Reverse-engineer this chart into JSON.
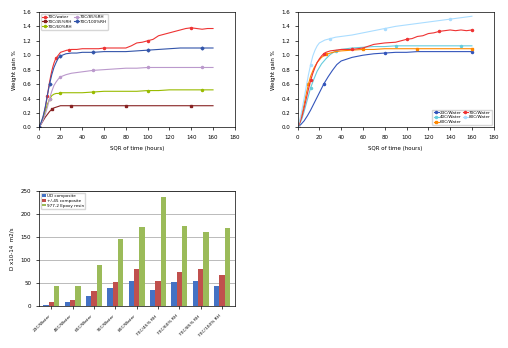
{
  "left_plot": {
    "xlabel": "SQR of time (hours)",
    "ylabel": "Weight gain %",
    "xlim": [
      0,
      180
    ],
    "ylim": [
      0,
      1.6
    ],
    "yticks": [
      0,
      0.2,
      0.4,
      0.6,
      0.8,
      1.0,
      1.2,
      1.4,
      1.6
    ],
    "xticks": [
      0,
      20,
      40,
      60,
      80,
      100,
      120,
      140,
      160,
      180
    ],
    "series": [
      {
        "label": "70C/water",
        "color": "#EE3333",
        "marker": "o",
        "markersize": 1.5,
        "linewidth": 0.8,
        "markevery": 8,
        "x": [
          0,
          1,
          2,
          3,
          4,
          5,
          6,
          7,
          8,
          9,
          10,
          11,
          12,
          13,
          14,
          15,
          16,
          17,
          18,
          19,
          20,
          22,
          24,
          26,
          28,
          30,
          32,
          35,
          40,
          45,
          50,
          55,
          60,
          65,
          70,
          75,
          80,
          85,
          90,
          95,
          100,
          105,
          110,
          115,
          120,
          125,
          130,
          135,
          140,
          145,
          150,
          155,
          160
        ],
        "y": [
          0,
          0.02,
          0.05,
          0.09,
          0.14,
          0.2,
          0.27,
          0.35,
          0.44,
          0.54,
          0.63,
          0.71,
          0.78,
          0.84,
          0.89,
          0.93,
          0.96,
          0.98,
          1.0,
          1.02,
          1.04,
          1.05,
          1.06,
          1.07,
          1.07,
          1.08,
          1.08,
          1.08,
          1.09,
          1.09,
          1.09,
          1.09,
          1.1,
          1.1,
          1.1,
          1.1,
          1.1,
          1.13,
          1.17,
          1.18,
          1.2,
          1.22,
          1.27,
          1.29,
          1.31,
          1.33,
          1.35,
          1.37,
          1.38,
          1.37,
          1.36,
          1.37,
          1.37
        ]
      },
      {
        "label": "70C/45%RH",
        "color": "#882222",
        "marker": "s",
        "markersize": 1.5,
        "linewidth": 0.8,
        "markevery": 6,
        "x": [
          0,
          2,
          4,
          6,
          8,
          10,
          12,
          14,
          16,
          18,
          20,
          25,
          30,
          35,
          40,
          50,
          60,
          70,
          80,
          90,
          100,
          110,
          120,
          130,
          140,
          150,
          160
        ],
        "y": [
          0,
          0.04,
          0.09,
          0.14,
          0.18,
          0.22,
          0.25,
          0.27,
          0.28,
          0.29,
          0.3,
          0.3,
          0.3,
          0.3,
          0.3,
          0.3,
          0.3,
          0.3,
          0.3,
          0.3,
          0.3,
          0.3,
          0.3,
          0.3,
          0.3,
          0.3,
          0.3
        ]
      },
      {
        "label": "70C/60%RH",
        "color": "#99BB00",
        "marker": "o",
        "markersize": 1.5,
        "linewidth": 0.8,
        "markevery": 5,
        "x": [
          0,
          2,
          4,
          6,
          8,
          10,
          12,
          14,
          16,
          18,
          20,
          25,
          30,
          35,
          40,
          50,
          60,
          70,
          80,
          90,
          100,
          110,
          120,
          130,
          140,
          150,
          160
        ],
        "y": [
          0,
          0.05,
          0.12,
          0.22,
          0.32,
          0.39,
          0.44,
          0.46,
          0.47,
          0.47,
          0.48,
          0.48,
          0.48,
          0.48,
          0.48,
          0.49,
          0.5,
          0.5,
          0.5,
          0.5,
          0.51,
          0.51,
          0.52,
          0.52,
          0.52,
          0.52,
          0.52
        ]
      },
      {
        "label": "70C/85%RH",
        "color": "#BB99CC",
        "marker": "o",
        "markersize": 1.5,
        "linewidth": 0.8,
        "markevery": 5,
        "x": [
          0,
          2,
          4,
          6,
          8,
          10,
          12,
          14,
          16,
          18,
          20,
          25,
          30,
          35,
          40,
          50,
          60,
          70,
          80,
          90,
          100,
          110,
          120,
          130,
          140,
          150,
          160
        ],
        "y": [
          0,
          0.04,
          0.1,
          0.18,
          0.28,
          0.4,
          0.5,
          0.58,
          0.63,
          0.67,
          0.7,
          0.73,
          0.75,
          0.76,
          0.77,
          0.79,
          0.8,
          0.81,
          0.82,
          0.82,
          0.83,
          0.83,
          0.83,
          0.83,
          0.83,
          0.83,
          0.83
        ]
      },
      {
        "label": "70C/100%RH",
        "color": "#3355AA",
        "marker": "D",
        "markersize": 1.5,
        "linewidth": 0.8,
        "markevery": 5,
        "x": [
          0,
          2,
          4,
          6,
          8,
          10,
          12,
          14,
          16,
          18,
          20,
          25,
          30,
          35,
          40,
          50,
          60,
          70,
          80,
          90,
          100,
          110,
          120,
          130,
          140,
          150,
          160
        ],
        "y": [
          0,
          0.06,
          0.15,
          0.28,
          0.45,
          0.6,
          0.73,
          0.83,
          0.9,
          0.96,
          0.99,
          1.02,
          1.03,
          1.03,
          1.04,
          1.04,
          1.05,
          1.05,
          1.05,
          1.06,
          1.07,
          1.08,
          1.09,
          1.1,
          1.1,
          1.1,
          1.1
        ]
      }
    ]
  },
  "right_plot": {
    "xlabel": "SQR of time (hours)",
    "ylabel": "Weight gain %",
    "xlim": [
      0,
      180
    ],
    "ylim": [
      0,
      1.6
    ],
    "yticks": [
      0,
      0.2,
      0.4,
      0.6,
      0.8,
      1.0,
      1.2,
      1.4,
      1.6
    ],
    "xticks": [
      0,
      20,
      40,
      60,
      80,
      100,
      120,
      140,
      160,
      180
    ],
    "legend_loc": "lower right",
    "series": [
      {
        "label": "23C/Water",
        "color": "#3355BB",
        "marker": "o",
        "markersize": 1.5,
        "linewidth": 0.8,
        "markevery": 8,
        "x": [
          0,
          3,
          6,
          9,
          12,
          15,
          18,
          21,
          24,
          28,
          32,
          36,
          40,
          50,
          60,
          70,
          80,
          90,
          100,
          110,
          120,
          130,
          140,
          150,
          160
        ],
        "y": [
          0,
          0.04,
          0.09,
          0.16,
          0.24,
          0.33,
          0.42,
          0.51,
          0.6,
          0.7,
          0.79,
          0.87,
          0.92,
          0.97,
          1.0,
          1.02,
          1.03,
          1.04,
          1.04,
          1.05,
          1.05,
          1.05,
          1.05,
          1.05,
          1.05
        ]
      },
      {
        "label": "40C/Water",
        "color": "#66CCDD",
        "marker": "o",
        "markersize": 1.5,
        "linewidth": 0.8,
        "markevery": 6,
        "x": [
          0,
          2,
          4,
          6,
          8,
          10,
          12,
          15,
          18,
          22,
          26,
          30,
          35,
          40,
          50,
          60,
          70,
          80,
          90,
          100,
          110,
          120,
          130,
          140,
          150,
          160
        ],
        "y": [
          0,
          0.05,
          0.12,
          0.22,
          0.33,
          0.44,
          0.55,
          0.67,
          0.78,
          0.88,
          0.95,
          1.01,
          1.06,
          1.08,
          1.1,
          1.11,
          1.12,
          1.12,
          1.13,
          1.13,
          1.13,
          1.13,
          1.13,
          1.13,
          1.13,
          1.13
        ]
      },
      {
        "label": "60C/Water",
        "color": "#FF8800",
        "marker": "s",
        "markersize": 1.5,
        "linewidth": 0.8,
        "markevery": 5,
        "x": [
          0,
          2,
          4,
          6,
          8,
          10,
          12,
          15,
          18,
          22,
          26,
          30,
          35,
          40,
          50,
          60,
          70,
          80,
          90,
          100,
          110,
          120,
          130,
          140,
          150,
          160
        ],
        "y": [
          0,
          0.08,
          0.19,
          0.32,
          0.47,
          0.6,
          0.71,
          0.82,
          0.9,
          0.97,
          1.01,
          1.03,
          1.05,
          1.06,
          1.07,
          1.08,
          1.08,
          1.09,
          1.09,
          1.09,
          1.09,
          1.09,
          1.09,
          1.09,
          1.09,
          1.09
        ]
      },
      {
        "label": "70C/Water",
        "color": "#EE3333",
        "marker": "o",
        "markersize": 1.5,
        "linewidth": 0.8,
        "markevery": 6,
        "x": [
          0,
          2,
          4,
          6,
          8,
          10,
          12,
          14,
          16,
          18,
          20,
          22,
          24,
          26,
          28,
          30,
          35,
          40,
          50,
          60,
          70,
          80,
          90,
          95,
          100,
          105,
          110,
          115,
          120,
          125,
          130,
          135,
          140,
          145,
          150,
          155,
          160
        ],
        "y": [
          0,
          0.06,
          0.15,
          0.27,
          0.4,
          0.53,
          0.65,
          0.75,
          0.83,
          0.9,
          0.95,
          0.99,
          1.02,
          1.04,
          1.05,
          1.06,
          1.07,
          1.08,
          1.08,
          1.1,
          1.15,
          1.17,
          1.18,
          1.2,
          1.22,
          1.23,
          1.26,
          1.27,
          1.3,
          1.31,
          1.33,
          1.34,
          1.35,
          1.34,
          1.35,
          1.34,
          1.35
        ]
      },
      {
        "label": "80C/Water",
        "color": "#AADDFF",
        "marker": "o",
        "markersize": 1.5,
        "linewidth": 0.8,
        "markevery": 6,
        "x": [
          0,
          2,
          4,
          6,
          8,
          10,
          12,
          14,
          16,
          18,
          20,
          25,
          30,
          35,
          40,
          50,
          60,
          70,
          80,
          90,
          100,
          110,
          120,
          130,
          140,
          150,
          160
        ],
        "y": [
          0,
          0.1,
          0.24,
          0.4,
          0.57,
          0.73,
          0.87,
          0.99,
          1.07,
          1.13,
          1.17,
          1.21,
          1.23,
          1.25,
          1.26,
          1.28,
          1.31,
          1.34,
          1.37,
          1.4,
          1.42,
          1.44,
          1.46,
          1.48,
          1.5,
          1.52,
          1.54
        ]
      }
    ]
  },
  "bar_plot": {
    "ylabel": "D x10-14  m2/s",
    "ylim": [
      0,
      250
    ],
    "yticks": [
      0,
      50,
      100,
      150,
      200,
      250
    ],
    "categories": [
      "23C/Water",
      "40C/Water",
      "60C/Water",
      "70C/Water",
      "80C/Water",
      "70C/45% RH",
      "70C/60% RH",
      "70C/85% RH",
      "70C/100% RH"
    ],
    "series": [
      {
        "label": "UD composite",
        "color": "#4472C4",
        "values": [
          3,
          9,
          22,
          40,
          55,
          35,
          52,
          55,
          43
        ]
      },
      {
        "label": "+/-45 composite",
        "color": "#C0504D",
        "values": [
          10,
          13,
          33,
          53,
          80,
          55,
          75,
          80,
          67
        ]
      },
      {
        "label": "977-2 Epoxy resin",
        "color": "#9BBB59",
        "values": [
          44,
          44,
          90,
          145,
          172,
          237,
          174,
          160,
          170
        ]
      }
    ]
  }
}
